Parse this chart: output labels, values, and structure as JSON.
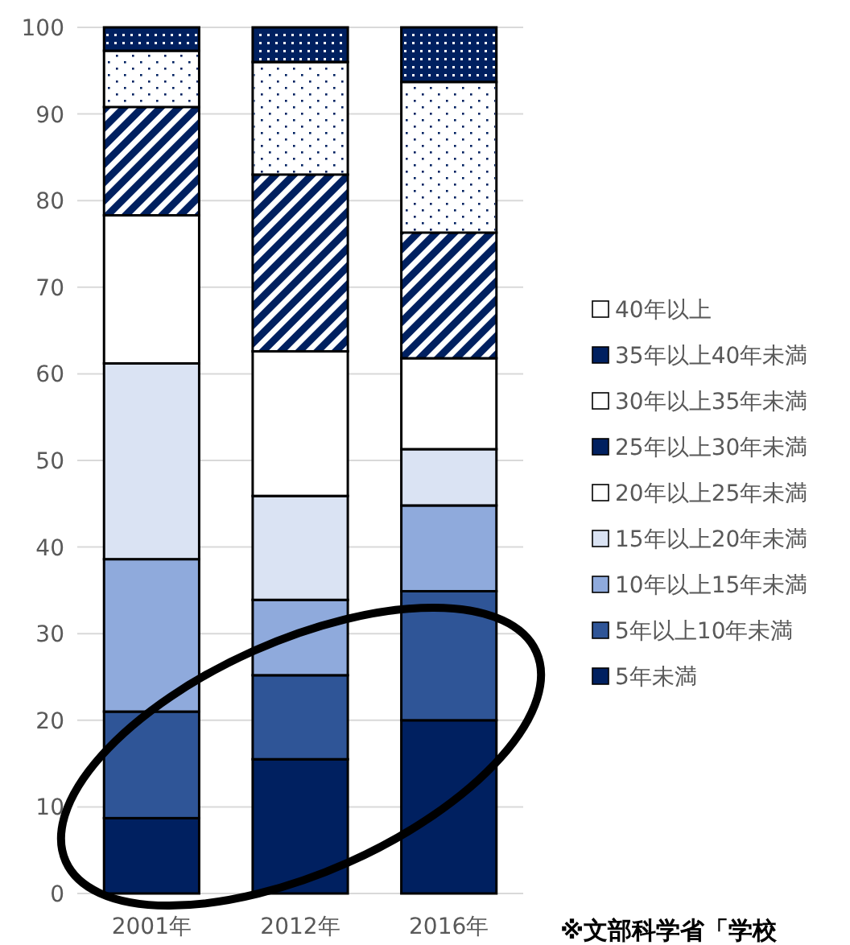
{
  "chart_data": {
    "type": "bar",
    "stacked": true,
    "categories": [
      "2001年",
      "2012年",
      "2016年"
    ],
    "series": [
      {
        "name": "5年未満",
        "color": "#002060",
        "values": [
          8.7,
          15.5,
          20.0
        ]
      },
      {
        "name": "5年以上10年未満",
        "color": "#2f5597",
        "values": [
          12.3,
          9.7,
          14.9
        ]
      },
      {
        "name": "10年以上15年未満",
        "color": "#8faadc",
        "values": [
          17.6,
          8.7,
          9.9
        ]
      },
      {
        "name": "15年以上20年未満",
        "color": "#dae3f3",
        "values": [
          22.6,
          12.0,
          6.5
        ]
      },
      {
        "name": "20年以上25年未満",
        "color": "#ffffff",
        "values": [
          17.1,
          16.7,
          10.5
        ]
      },
      {
        "name": "25年以上30年未満",
        "color": "#002060",
        "values": [
          12.5,
          20.4,
          14.5
        ]
      },
      {
        "name": "30年以上35年未満",
        "color": "#ffffff",
        "values": [
          6.5,
          13.0,
          17.4
        ]
      },
      {
        "name": "35年以上40年未満",
        "color": "#002060",
        "values": [
          2.7,
          4.0,
          6.3
        ]
      },
      {
        "name": "40年以上",
        "color": "#ffffff",
        "values": [
          0,
          0,
          0
        ]
      }
    ],
    "ylim": [
      0,
      100
    ],
    "yticks": [
      0,
      10,
      20,
      30,
      40,
      50,
      60,
      70,
      80,
      90,
      100
    ],
    "grid": "y",
    "legend": "right",
    "annotations": [
      "※文部科学省「学校"
    ]
  }
}
